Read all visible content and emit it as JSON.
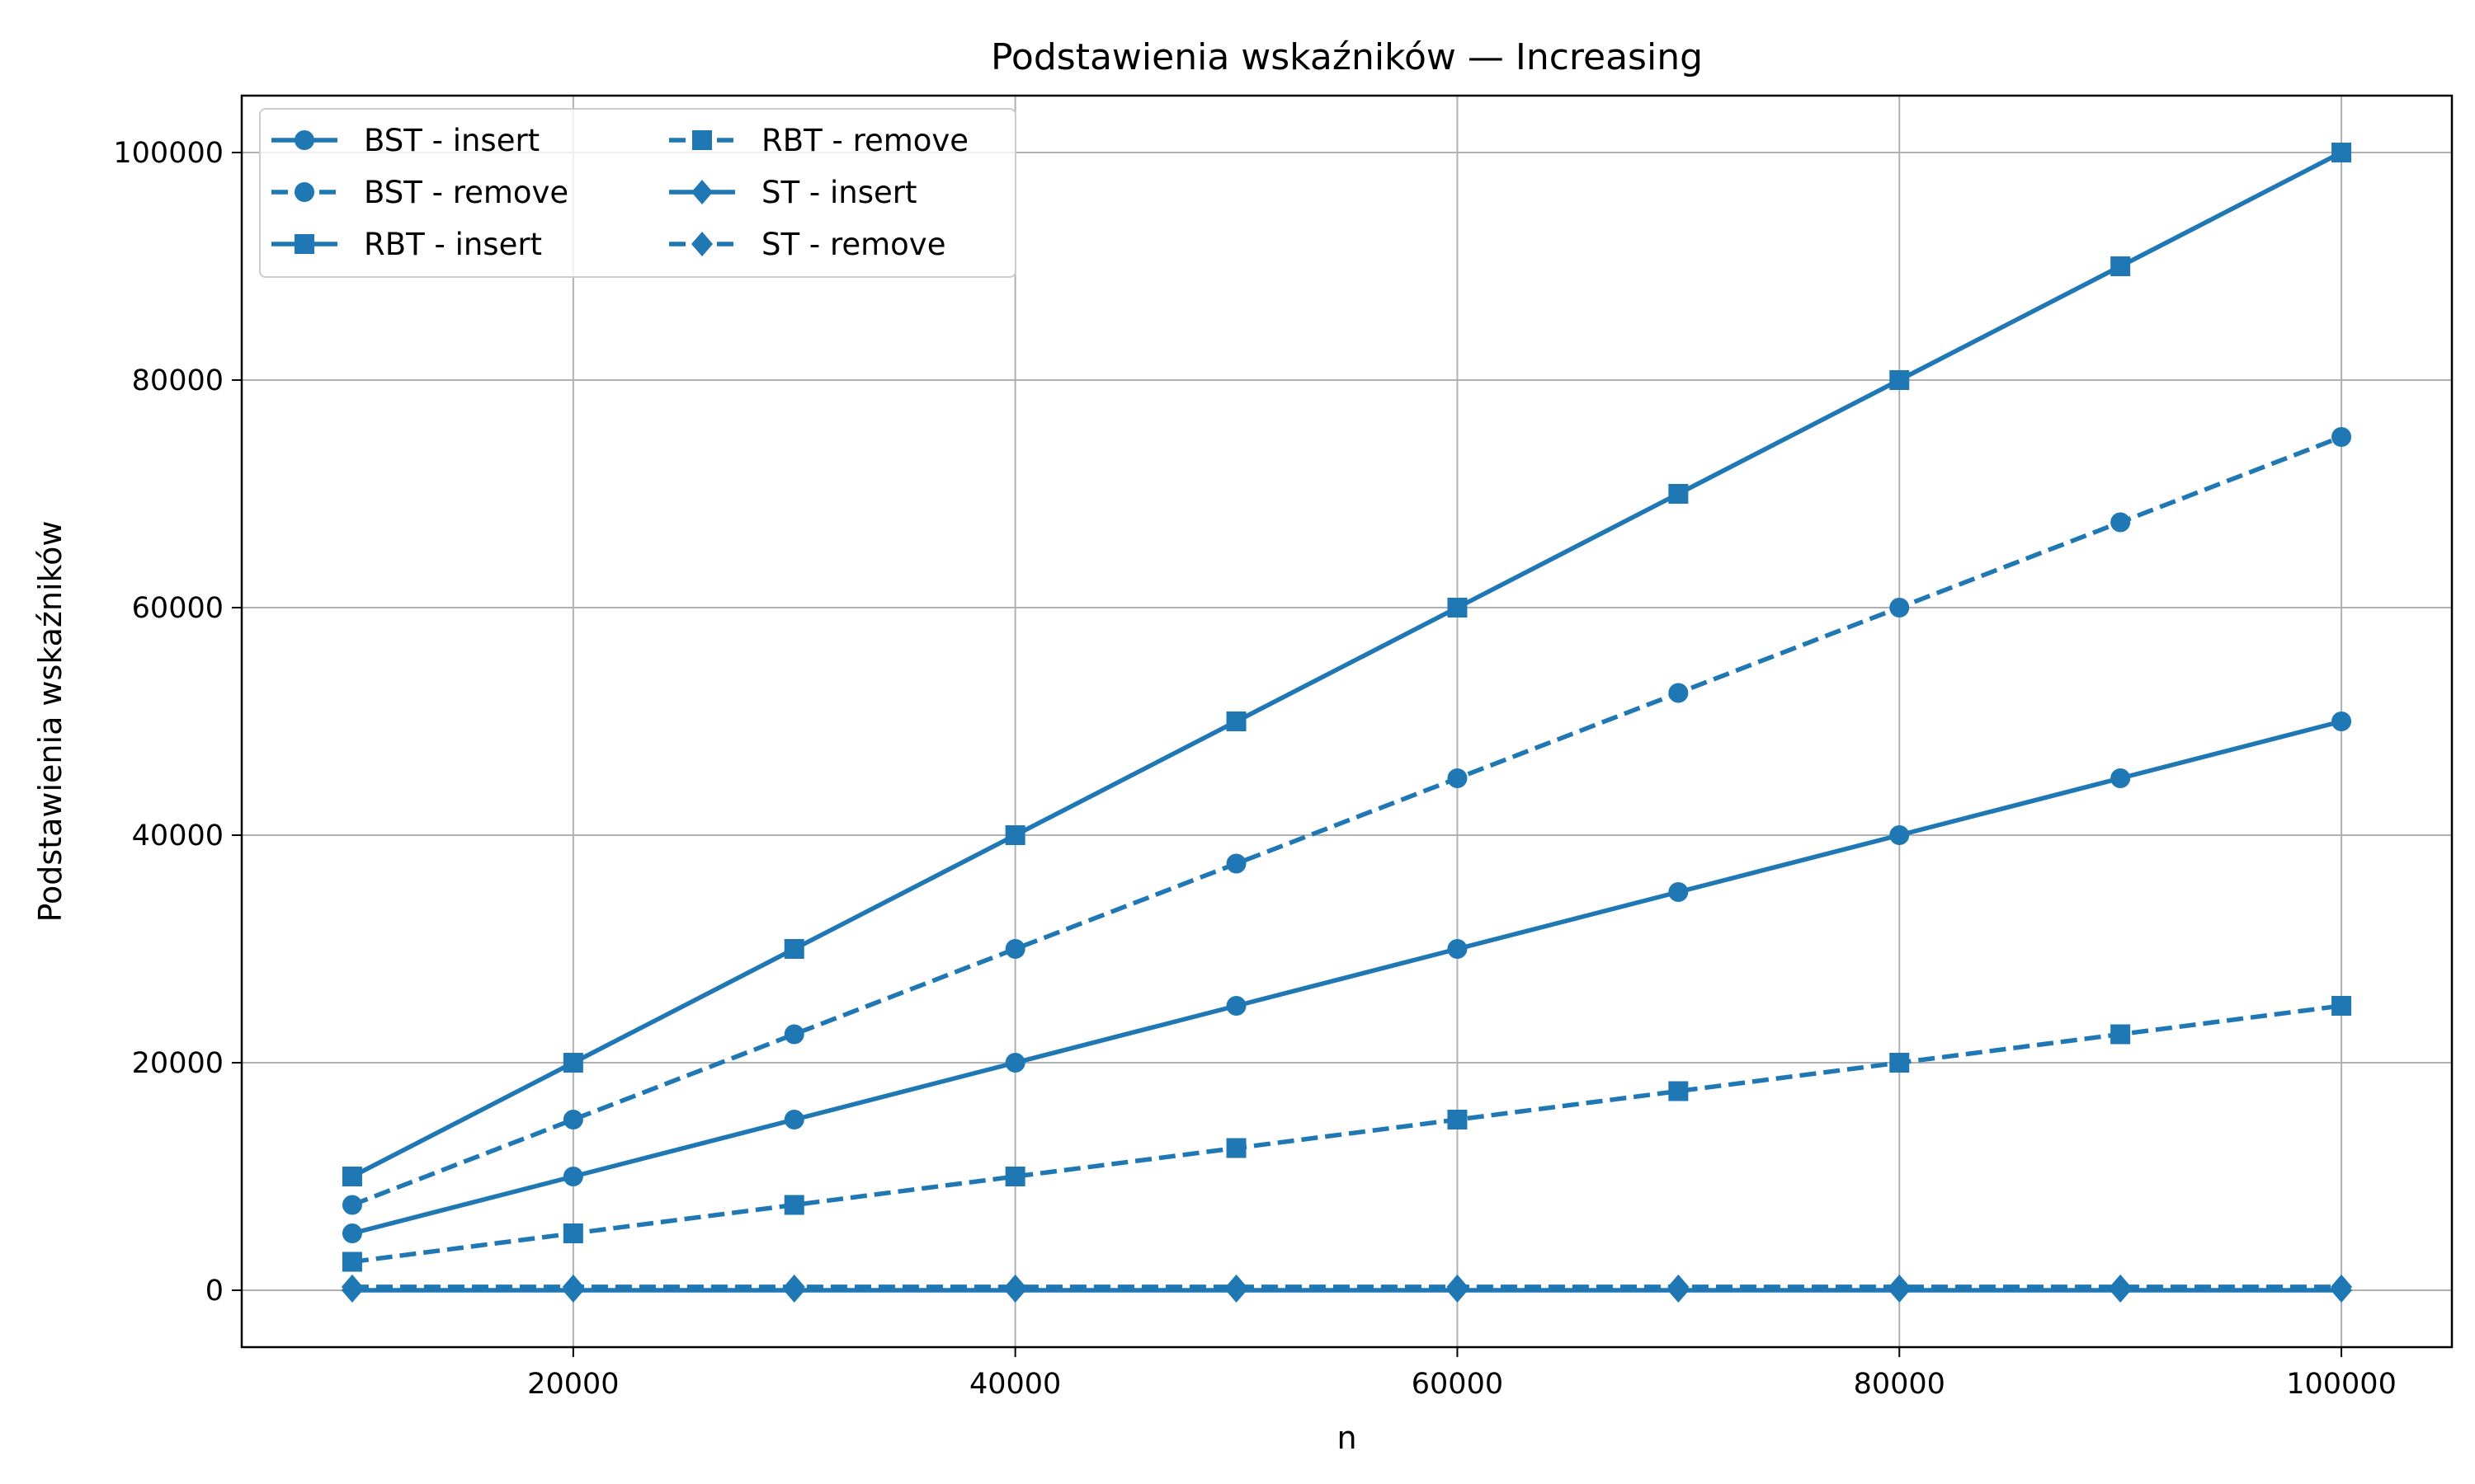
{
  "chart_data": {
    "type": "line",
    "title": "Podstawienia wskaźników — Increasing",
    "xlabel": "n",
    "ylabel": "Podstawienia wskaźników",
    "xlim": [
      5000,
      105000
    ],
    "ylim": [
      -5000,
      105000
    ],
    "xticks": [
      20000,
      40000,
      60000,
      80000,
      100000
    ],
    "xtick_labels": [
      "20000",
      "40000",
      "60000",
      "80000",
      "100000"
    ],
    "yticks": [
      0,
      20000,
      40000,
      60000,
      80000,
      100000
    ],
    "ytick_labels": [
      "0",
      "20000",
      "40000",
      "60000",
      "80000",
      "100000"
    ],
    "grid": true,
    "legend_position": "top-left",
    "legend_columns": 2,
    "color": "#1f77b4",
    "x": [
      10000,
      20000,
      30000,
      40000,
      50000,
      60000,
      70000,
      80000,
      90000,
      100000
    ],
    "series": [
      {
        "name": "BST - insert",
        "marker": "circle",
        "linestyle": "solid",
        "values": [
          5000,
          10000,
          15000,
          20000,
          25000,
          30000,
          35000,
          40000,
          45000,
          50000
        ]
      },
      {
        "name": "BST - remove",
        "marker": "circle",
        "linestyle": "dashed",
        "values": [
          7500,
          15000,
          22500,
          30000,
          37500,
          45000,
          52500,
          60000,
          67500,
          75000
        ]
      },
      {
        "name": "RBT - insert",
        "marker": "square",
        "linestyle": "solid",
        "values": [
          10000,
          20000,
          30000,
          40000,
          50000,
          60000,
          70000,
          80000,
          90000,
          100000
        ]
      },
      {
        "name": "RBT - remove",
        "marker": "square",
        "linestyle": "dashed",
        "values": [
          2500,
          5000,
          7500,
          10000,
          12500,
          15000,
          17500,
          20000,
          22500,
          25000
        ]
      },
      {
        "name": "ST - insert",
        "marker": "diamond",
        "linestyle": "solid",
        "values": [
          0,
          0,
          0,
          0,
          0,
          0,
          0,
          0,
          0,
          0
        ]
      },
      {
        "name": "ST - remove",
        "marker": "diamond",
        "linestyle": "dashed",
        "values": [
          300,
          300,
          300,
          300,
          300,
          300,
          300,
          300,
          300,
          300
        ]
      }
    ]
  }
}
